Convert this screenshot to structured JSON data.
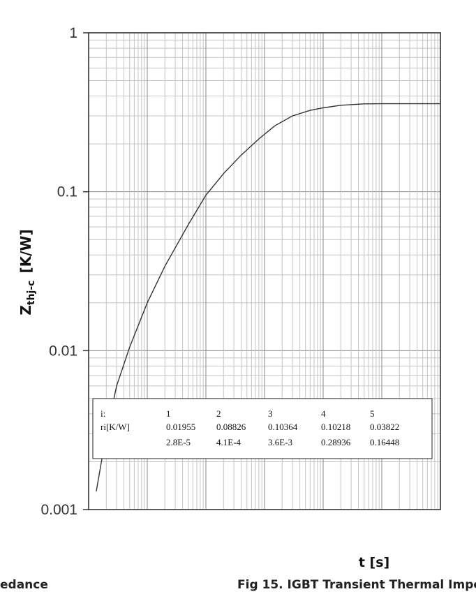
{
  "chart_data": {
    "type": "line",
    "title": "",
    "ylabel_main": "Z",
    "ylabel_sub": "thj-c",
    "ylabel_unit": "[K/W]",
    "xlabel": "t  [s]",
    "y_scale": "log",
    "x_scale": "log",
    "ylim": [
      0.001,
      1
    ],
    "y_ticks": [
      "1",
      "0.1",
      "0.01",
      "0.001"
    ],
    "xlim": [
      1e-05,
      10
    ],
    "grid": true,
    "series": [
      {
        "x": [
          1.35e-05,
          2e-05,
          3e-05,
          5e-05,
          0.0001,
          0.0002,
          0.0005,
          0.001,
          0.002,
          0.004,
          0.008,
          0.015,
          0.03,
          0.06,
          0.1,
          0.2,
          0.5,
          1,
          2,
          10
        ],
        "y": [
          0.0013,
          0.003,
          0.006,
          0.0105,
          0.02,
          0.034,
          0.062,
          0.095,
          0.13,
          0.17,
          0.215,
          0.26,
          0.3,
          0.325,
          0.337,
          0.35,
          0.357,
          0.358,
          0.358,
          0.358
        ]
      }
    ],
    "table": {
      "header": [
        "i:",
        "1",
        "2",
        "3",
        "4",
        "5"
      ],
      "rows": [
        [
          "ri[K/W]",
          "0.01955",
          "0.08826",
          "0.10364",
          "0.10218",
          "0.03822"
        ],
        [
          "",
          "2.8E-5",
          "4.1E-4",
          "3.6E-3",
          "0.28936",
          "0.16448"
        ]
      ]
    }
  },
  "caption_left": "edance",
  "caption_right": "Fig 15. IGBT Transient Thermal Impe"
}
